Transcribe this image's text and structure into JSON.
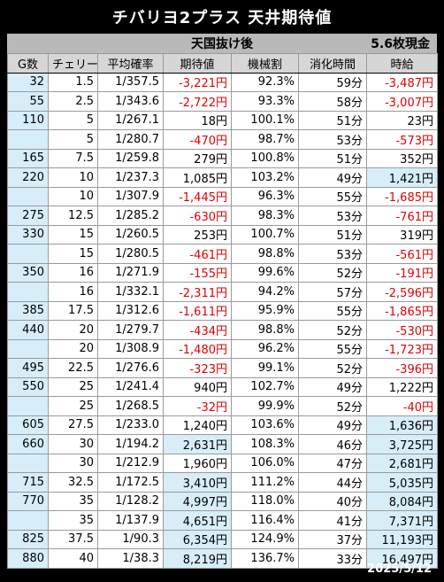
{
  "title": "チバリヨ2プラス 天井期待値",
  "subtitle": "天国抜け後",
  "rate_label": "5.6枚現金",
  "headers": [
    "G数",
    "チェリー",
    "平均確率",
    "期待値",
    "機械割",
    "消化時間",
    "時給"
  ],
  "rows": [
    {
      "g": "32",
      "cherry": "1.5",
      "prob": "1/357.5",
      "exp": "-3,221円",
      "rate": "92.3%",
      "time": "59分",
      "hourly": "-3,487円"
    },
    {
      "g": "55",
      "cherry": "2.5",
      "prob": "1/343.6",
      "exp": "-2,722円",
      "rate": "93.3%",
      "time": "58分",
      "hourly": "-3,007円"
    },
    {
      "g": "110",
      "cherry": "5",
      "prob": "1/267.1",
      "exp": "18円",
      "rate": "100.1%",
      "time": "51分",
      "hourly": "23円"
    },
    {
      "g": "",
      "cherry": "5",
      "prob": "1/280.7",
      "exp": "-470円",
      "rate": "98.7%",
      "time": "53分",
      "hourly": "-573円"
    },
    {
      "g": "165",
      "cherry": "7.5",
      "prob": "1/259.8",
      "exp": "279円",
      "rate": "100.8%",
      "time": "51分",
      "hourly": "352円"
    },
    {
      "g": "220",
      "cherry": "10",
      "prob": "1/237.3",
      "exp": "1,085円",
      "rate": "103.2%",
      "time": "49分",
      "hourly": "1,421円"
    },
    {
      "g": "",
      "cherry": "10",
      "prob": "1/307.9",
      "exp": "-1,445円",
      "rate": "96.3%",
      "time": "55分",
      "hourly": "-1,685円"
    },
    {
      "g": "275",
      "cherry": "12.5",
      "prob": "1/285.2",
      "exp": "-630円",
      "rate": "98.3%",
      "time": "53分",
      "hourly": "-761円"
    },
    {
      "g": "330",
      "cherry": "15",
      "prob": "1/260.5",
      "exp": "253円",
      "rate": "100.7%",
      "time": "51分",
      "hourly": "319円"
    },
    {
      "g": "",
      "cherry": "15",
      "prob": "1/280.5",
      "exp": "-461円",
      "rate": "98.8%",
      "time": "53分",
      "hourly": "-561円"
    },
    {
      "g": "350",
      "cherry": "16",
      "prob": "1/271.9",
      "exp": "-155円",
      "rate": "99.6%",
      "time": "52分",
      "hourly": "-191円"
    },
    {
      "g": "",
      "cherry": "16",
      "prob": "1/332.1",
      "exp": "-2,311円",
      "rate": "94.2%",
      "time": "57分",
      "hourly": "-2,596円"
    },
    {
      "g": "385",
      "cherry": "17.5",
      "prob": "1/312.6",
      "exp": "-1,611円",
      "rate": "95.9%",
      "time": "55分",
      "hourly": "-1,865円"
    },
    {
      "g": "440",
      "cherry": "20",
      "prob": "1/279.7",
      "exp": "-434円",
      "rate": "98.8%",
      "time": "52分",
      "hourly": "-530円"
    },
    {
      "g": "",
      "cherry": "20",
      "prob": "1/308.9",
      "exp": "-1,480円",
      "rate": "96.2%",
      "time": "55分",
      "hourly": "-1,723円"
    },
    {
      "g": "495",
      "cherry": "22.5",
      "prob": "1/276.6",
      "exp": "-323円",
      "rate": "99.1%",
      "time": "52分",
      "hourly": "-396円"
    },
    {
      "g": "550",
      "cherry": "25",
      "prob": "1/241.4",
      "exp": "940円",
      "rate": "102.7%",
      "time": "49分",
      "hourly": "1,222円"
    },
    {
      "g": "",
      "cherry": "25",
      "prob": "1/268.5",
      "exp": "-32円",
      "rate": "99.9%",
      "time": "52分",
      "hourly": "-40円"
    },
    {
      "g": "605",
      "cherry": "27.5",
      "prob": "1/233.0",
      "exp": "1,240円",
      "rate": "103.6%",
      "time": "49分",
      "hourly": "1,636円"
    },
    {
      "g": "660",
      "cherry": "30",
      "prob": "1/194.2",
      "exp": "2,631円",
      "rate": "108.3%",
      "time": "46分",
      "hourly": "3,725円"
    },
    {
      "g": "",
      "cherry": "30",
      "prob": "1/212.9",
      "exp": "1,960円",
      "rate": "106.0%",
      "time": "47分",
      "hourly": "2,681円"
    },
    {
      "g": "715",
      "cherry": "32.5",
      "prob": "1/172.5",
      "exp": "3,410円",
      "rate": "111.2%",
      "time": "44分",
      "hourly": "5,035円"
    },
    {
      "g": "770",
      "cherry": "35",
      "prob": "1/128.2",
      "exp": "4,997円",
      "rate": "118.0%",
      "time": "40分",
      "hourly": "8,084円"
    },
    {
      "g": "",
      "cherry": "35",
      "prob": "1/137.9",
      "exp": "4,651円",
      "rate": "116.4%",
      "time": "41分",
      "hourly": "7,371円"
    },
    {
      "g": "825",
      "cherry": "37.5",
      "prob": "1/90.3",
      "exp": "6,354円",
      "rate": "124.9%",
      "time": "37分",
      "hourly": "11,193円"
    },
    {
      "g": "880",
      "cherry": "40",
      "prob": "1/38.3",
      "exp": "8,219円",
      "rate": "136.7%",
      "time": "33分",
      "hourly": "16,497円"
    }
  ],
  "date": "2025/5/12"
}
